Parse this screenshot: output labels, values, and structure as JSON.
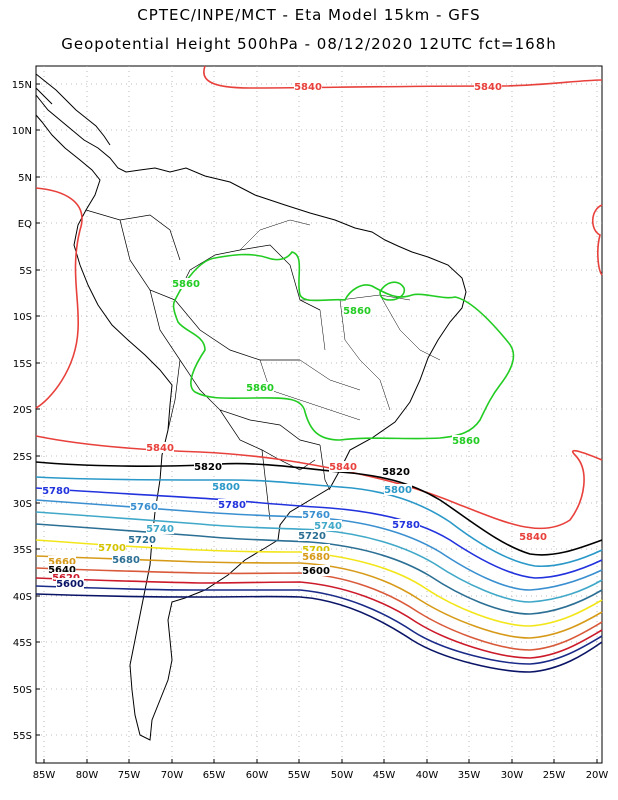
{
  "header": {
    "line1": "CPTEC/INPE/MCT -  Eta Model 15km - GFS",
    "line2": "Geopotential Height 500hPa - 08/12/2020 12UTC fct=168h"
  },
  "axes": {
    "lat_labels": [
      "15N",
      "10N",
      "5N",
      "EQ",
      "5S",
      "10S",
      "15S",
      "20S",
      "25S",
      "30S",
      "35S",
      "40S",
      "45S",
      "50S",
      "55S"
    ],
    "lon_labels": [
      "85W",
      "80W",
      "75W",
      "70W",
      "65W",
      "60W",
      "55W",
      "50W",
      "45W",
      "40W",
      "35W",
      "30W",
      "25W",
      "20W"
    ]
  },
  "contours": [
    {
      "value": "5840",
      "color": "#e8413c"
    },
    {
      "value": "5860",
      "color": "#22cc22"
    },
    {
      "value": "5820",
      "color": "#000000"
    },
    {
      "value": "5800",
      "color": "#2a98c8"
    },
    {
      "value": "5780",
      "color": "#2233dd"
    },
    {
      "value": "5760",
      "color": "#3a8fd0"
    },
    {
      "value": "5740",
      "color": "#40a8c8"
    },
    {
      "value": "5720",
      "color": "#2c6f94"
    },
    {
      "value": "5700",
      "color": "#f2e61a"
    },
    {
      "value": "5680",
      "color": "#d79a18"
    },
    {
      "value": "5660",
      "color": "#d95a3a"
    },
    {
      "value": "5640",
      "color": "#cc1a2a"
    },
    {
      "value": "5620",
      "color": "#1a2a88"
    },
    {
      "value": "5600",
      "color": "#0a1466"
    }
  ],
  "labels": [
    {
      "text": "5840",
      "color": "#e8413c"
    },
    {
      "text": "5840",
      "color": "#e8413c"
    },
    {
      "text": "5840",
      "color": "#e8413c"
    },
    {
      "text": "5840",
      "color": "#e8413c"
    },
    {
      "text": "5840",
      "color": "#e8413c"
    },
    {
      "text": "5860",
      "color": "#22cc22"
    },
    {
      "text": "5860",
      "color": "#22cc22"
    },
    {
      "text": "5860",
      "color": "#22cc22"
    },
    {
      "text": "5860",
      "color": "#22cc22"
    },
    {
      "text": "5820",
      "color": "#000000"
    },
    {
      "text": "5820",
      "color": "#000000"
    },
    {
      "text": "5800",
      "color": "#2a98c8"
    },
    {
      "text": "5800",
      "color": "#2a98c8"
    },
    {
      "text": "5780",
      "color": "#2233dd"
    },
    {
      "text": "5780",
      "color": "#2233dd"
    },
    {
      "text": "5780",
      "color": "#2233dd"
    },
    {
      "text": "5760",
      "color": "#3a8fd0"
    },
    {
      "text": "5760",
      "color": "#3a8fd0"
    },
    {
      "text": "5740",
      "color": "#40a8c8"
    },
    {
      "text": "5740",
      "color": "#40a8c8"
    },
    {
      "text": "5720",
      "color": "#2c6f94"
    },
    {
      "text": "5720",
      "color": "#2c6f94"
    },
    {
      "text": "5700",
      "color": "#d4c400"
    },
    {
      "text": "5700",
      "color": "#d4c400"
    },
    {
      "text": "5680",
      "color": "#2c6f94"
    },
    {
      "text": "5680",
      "color": "#d79a18"
    },
    {
      "text": "5660",
      "color": "#d79a18"
    },
    {
      "text": "5640",
      "color": "#000000"
    },
    {
      "text": "5620",
      "color": "#cc1a2a"
    },
    {
      "text": "5600",
      "color": "#000000"
    },
    {
      "text": "5600",
      "color": "#0a1466"
    }
  ]
}
